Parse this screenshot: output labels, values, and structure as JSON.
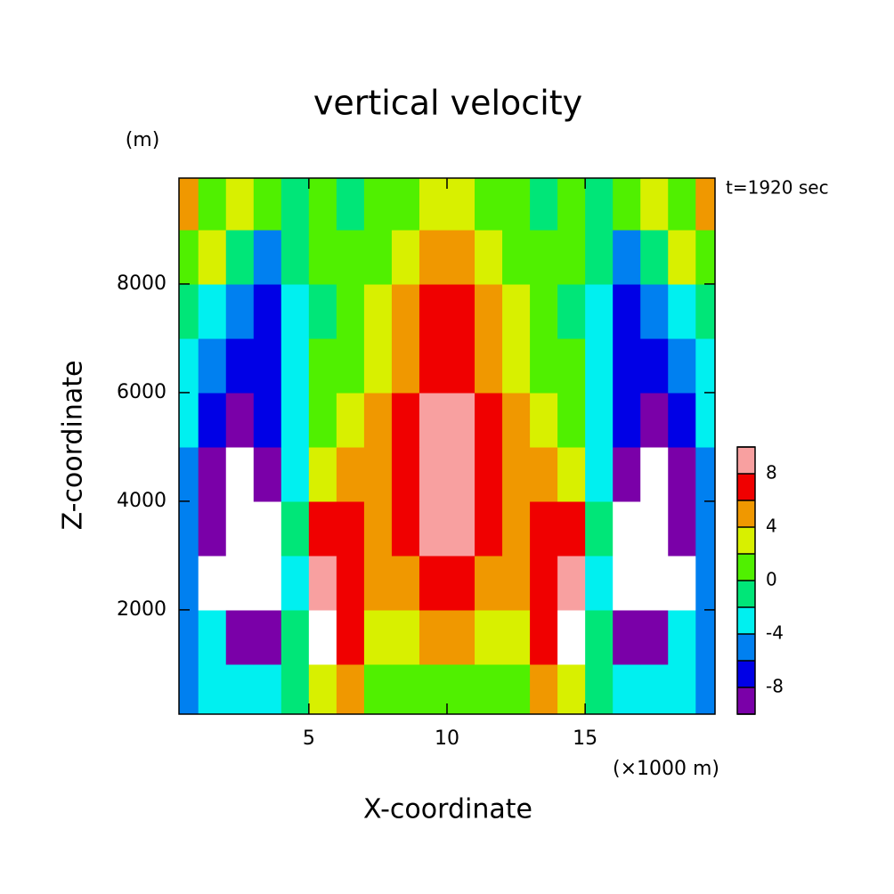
{
  "chart_data": {
    "type": "contour",
    "title": "vertical velocity",
    "y_unit": "(m)",
    "x_unit": "(×1000 m)",
    "annotation": "t=1920 sec",
    "xlabel": "X-coordinate",
    "ylabel": "Z-coordinate",
    "xlim": [
      0.3,
      19.7
    ],
    "ylim": [
      80,
      9950
    ],
    "xticks": [
      5,
      10,
      15
    ],
    "yticks": [
      2000,
      4000,
      6000,
      8000
    ],
    "x": [
      0.5,
      1.5,
      2.5,
      3.5,
      4.5,
      5.5,
      6.5,
      7.5,
      8.5,
      9.5,
      10.5,
      11.5,
      12.5,
      13.5,
      14.5,
      15.5,
      16.5,
      17.5,
      18.5,
      19.5
    ],
    "z": [
      500,
      1500,
      2500,
      3500,
      4500,
      5500,
      6500,
      7500,
      8500,
      9500
    ],
    "values": [
      [
        -5,
        -3,
        -3,
        -3,
        -1,
        3,
        5,
        1,
        1,
        1,
        1,
        1,
        1,
        5,
        3,
        -1,
        -3,
        -3,
        -3,
        -5
      ],
      [
        -6,
        -3,
        -10,
        -9,
        -1,
        11,
        7,
        3,
        3,
        5,
        5,
        3,
        3,
        7,
        11,
        -1,
        -9,
        -10,
        -3,
        -6
      ],
      [
        -5,
        -11,
        -12,
        -11,
        -3,
        9,
        7,
        5,
        5,
        7,
        7,
        5,
        5,
        7,
        9,
        -3,
        -11,
        -12,
        -11,
        -5
      ],
      [
        -6,
        -10,
        -12,
        -11,
        -2,
        6,
        6,
        5,
        7,
        9,
        9,
        7,
        5,
        6,
        6,
        -2,
        -11,
        -12,
        -10,
        -6
      ],
      [
        -6,
        -9,
        -11,
        -9,
        -3,
        3,
        5,
        5,
        7,
        9,
        9,
        7,
        5,
        5,
        3,
        -3,
        -9,
        -11,
        -9,
        -6
      ],
      [
        -4,
        -7,
        -9,
        -7,
        -3,
        1,
        3,
        5,
        7,
        9,
        9,
        7,
        5,
        3,
        1,
        -3,
        -7,
        -9,
        -7,
        -4
      ],
      [
        -3,
        -5,
        -7,
        -7,
        -3,
        1,
        1,
        3,
        5,
        7,
        7,
        5,
        3,
        1,
        1,
        -3,
        -7,
        -7,
        -5,
        -3
      ],
      [
        -2,
        -3,
        -5,
        -7,
        -3,
        -1,
        1,
        3,
        5,
        7,
        7,
        5,
        3,
        1,
        -1,
        -3,
        -7,
        -5,
        -3,
        -2
      ],
      [
        1,
        3,
        -1,
        -5,
        -1,
        1,
        1,
        1,
        3,
        5,
        5,
        3,
        1,
        1,
        1,
        -1,
        -5,
        -1,
        3,
        1
      ],
      [
        5,
        1,
        3,
        1,
        -1,
        1,
        -1,
        1,
        1,
        3,
        3,
        1,
        1,
        -1,
        1,
        -1,
        1,
        3,
        1,
        5
      ]
    ],
    "levels": [
      -10,
      -8,
      -6,
      -4,
      -2,
      0,
      2,
      4,
      6,
      8,
      10
    ],
    "colors": [
      "#7a00a8",
      "#0000e6",
      "#0080f0",
      "#00f0f0",
      "#00e678",
      "#50f000",
      "#d8f000",
      "#f09800",
      "#f00000",
      "#f8a0a0"
    ],
    "colorbar_ticks": [
      -8,
      -4,
      0,
      4,
      8
    ]
  }
}
